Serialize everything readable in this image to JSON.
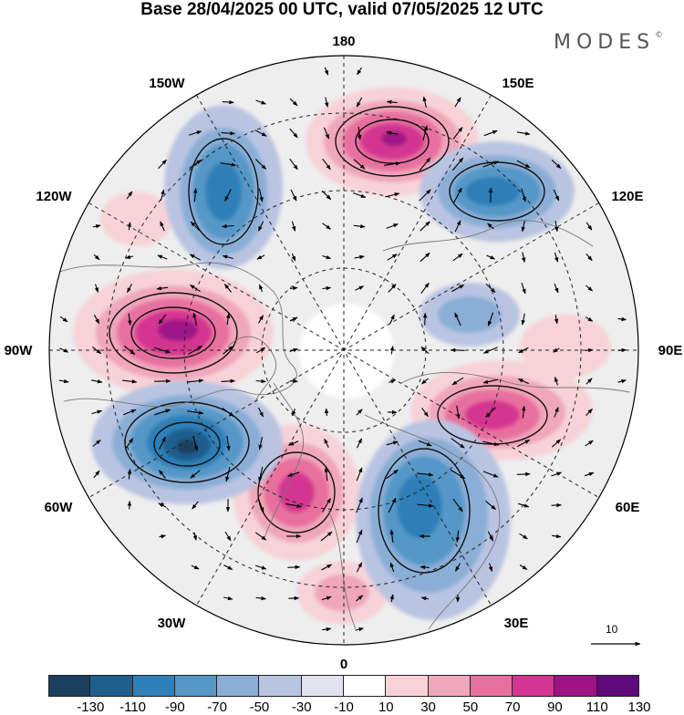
{
  "title": "Base 28/04/2025 00 UTC, valid 07/05/2025 12 UTC",
  "brand": "MODES",
  "brand_mark": "©",
  "longitude_labels": {
    "deg180": "180",
    "deg150E": "150E",
    "deg120E": "120E",
    "deg90E": "90E",
    "deg60E": "60E",
    "deg30E": "30E",
    "deg0": "0",
    "deg30W": "30W",
    "deg60W": "60W",
    "deg90W": "90W",
    "deg120W": "120W",
    "deg150W": "150W"
  },
  "vector_scale": {
    "label": "10"
  },
  "colorbar": {
    "tick_labels": [
      "-130",
      "-110",
      "-90",
      "-70",
      "-50",
      "-30",
      "-10",
      "10",
      "30",
      "50",
      "70",
      "90",
      "110",
      "130"
    ],
    "colors": [
      "#1b3f5e",
      "#1f5f8e",
      "#2f7fb8",
      "#5598c8",
      "#8aaed6",
      "#b9c4e2",
      "#e2e2f0",
      "#ffffff",
      "#f7d3d8",
      "#f0a6bb",
      "#e8709f",
      "#d43590",
      "#9e1286",
      "#5d0a7a"
    ]
  }
}
